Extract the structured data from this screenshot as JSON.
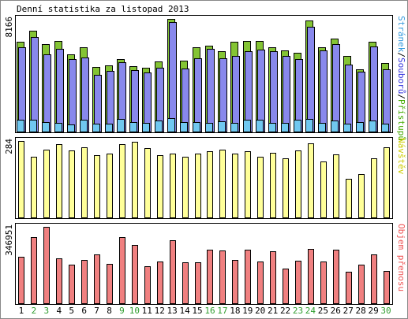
{
  "title": "Denní statistika za listopad 2013",
  "colors": {
    "background": "#ffffff",
    "panel_border": "#000000",
    "day_normal": "#000000",
    "day_weekend": "#2e9d2e",
    "visits_label": "#44aa00",
    "files_label": "#3333dd",
    "hits_label": "#3399dd",
    "sites_label": "#cccc00",
    "volume_label": "#ee5555"
  },
  "chart_data": [
    {
      "type": "bar",
      "panel": "top",
      "ymax_label": "8166",
      "ymax": 8166,
      "ylabel_parts": [
        "Stránek",
        "/",
        "Souborů",
        "/",
        "Přístupů"
      ],
      "categories": [
        "1",
        "2",
        "3",
        "4",
        "5",
        "6",
        "7",
        "8",
        "9",
        "10",
        "11",
        "12",
        "13",
        "14",
        "15",
        "16",
        "17",
        "18",
        "19",
        "20",
        "21",
        "22",
        "23",
        "24",
        "25",
        "26",
        "27",
        "28",
        "29",
        "30"
      ],
      "weekend_days": [
        2,
        3,
        9,
        10,
        16,
        17,
        23,
        24,
        30
      ],
      "series": [
        {
          "name": "Přístupů",
          "color": "#84c434",
          "values": [
            6520,
            7290,
            6360,
            6550,
            5570,
            6110,
            4700,
            4780,
            5230,
            4720,
            4640,
            5070,
            8166,
            5130,
            6100,
            6240,
            5820,
            6520,
            6550,
            6550,
            6120,
            5870,
            5710,
            8040,
            6130,
            6710,
            5460,
            4500,
            6500,
            4970
          ]
        },
        {
          "name": "Souborů",
          "color": "#8888ec",
          "values": [
            6110,
            6830,
            5610,
            6000,
            5250,
            5370,
            4140,
            4380,
            5010,
            4440,
            4300,
            4640,
            7960,
            4590,
            5330,
            6020,
            5290,
            5510,
            5820,
            5920,
            5810,
            5500,
            5230,
            7580,
            5870,
            6330,
            4880,
            4350,
            6170,
            4510
          ]
        },
        {
          "name": "Stránek",
          "color": "#70c8f0",
          "values": [
            830,
            860,
            670,
            630,
            520,
            880,
            580,
            550,
            920,
            700,
            650,
            780,
            980,
            710,
            680,
            600,
            730,
            610,
            850,
            860,
            620,
            640,
            870,
            910,
            610,
            790,
            570,
            700,
            800,
            580
          ]
        }
      ]
    },
    {
      "type": "bar",
      "panel": "middle",
      "ymax_label": "284",
      "ymax": 284,
      "ylabel": "Návštěv",
      "categories": [
        "1",
        "2",
        "3",
        "4",
        "5",
        "6",
        "7",
        "8",
        "9",
        "10",
        "11",
        "12",
        "13",
        "14",
        "15",
        "16",
        "17",
        "18",
        "19",
        "20",
        "21",
        "22",
        "23",
        "24",
        "25",
        "26",
        "27",
        "28",
        "29",
        "30"
      ],
      "series": [
        {
          "name": "Návštěv",
          "color": "#ffff99",
          "values": [
            284,
            226,
            252,
            273,
            250,
            260,
            232,
            236,
            272,
            282,
            257,
            232,
            236,
            224,
            236,
            245,
            252,
            236,
            245,
            224,
            241,
            221,
            250,
            274,
            207,
            235,
            143,
            162,
            219,
            260
          ]
        }
      ]
    },
    {
      "type": "bar",
      "panel": "bottom",
      "ymax_label": "346951",
      "ymax": 346951,
      "ylabel": "Objem přenosu",
      "categories": [
        "1",
        "2",
        "3",
        "4",
        "5",
        "6",
        "7",
        "8",
        "9",
        "10",
        "11",
        "12",
        "13",
        "14",
        "15",
        "16",
        "17",
        "18",
        "19",
        "20",
        "21",
        "22",
        "23",
        "24",
        "25",
        "26",
        "27",
        "28",
        "29",
        "30"
      ],
      "series": [
        {
          "name": "Objem přenosu",
          "color": "#f08080",
          "values": [
            212000,
            300000,
            346951,
            204000,
            177000,
            197000,
            220000,
            180000,
            302000,
            265000,
            167000,
            190000,
            285000,
            186000,
            187000,
            242000,
            240000,
            198000,
            244000,
            188000,
            237000,
            159000,
            193000,
            248000,
            188000,
            243000,
            143000,
            177000,
            223000,
            148000
          ]
        }
      ]
    }
  ]
}
